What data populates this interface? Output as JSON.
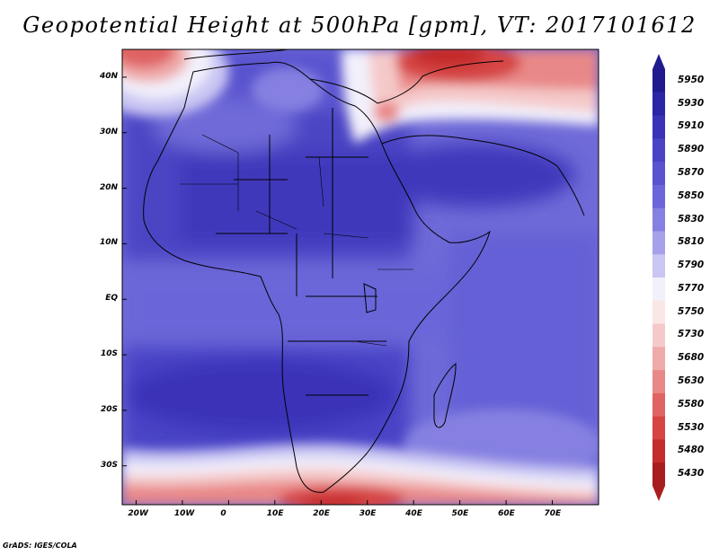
{
  "title": "Geopotential Height at 500hPa [gpm], VT: 2017101612",
  "credit": "GrADS: IGES/COLA",
  "map": {
    "region": "Africa",
    "lon_range": [
      -23,
      80
    ],
    "lat_range": [
      -37,
      45
    ],
    "lat_ticks": [
      "40N",
      "30N",
      "20N",
      "10N",
      "EQ",
      "10S",
      "20S",
      "30S"
    ],
    "lon_ticks": [
      "20W",
      "10W",
      "0",
      "10E",
      "20E",
      "30E",
      "40E",
      "50E",
      "60E",
      "70E"
    ]
  },
  "colorbar": {
    "levels": [
      "5950",
      "5930",
      "5910",
      "5890",
      "5870",
      "5850",
      "5830",
      "5810",
      "5790",
      "5770",
      "5750",
      "5730",
      "5680",
      "5630",
      "5580",
      "5530",
      "5480",
      "5430"
    ],
    "colors": [
      "#1f1b8f",
      "#2b26a6",
      "#3a33b8",
      "#4a43c6",
      "#5a53cf",
      "#6b66d9",
      "#8580e1",
      "#a6a1ea",
      "#c9c6f3",
      "#f2f0fb",
      "#fbe6e6",
      "#f5c9c9",
      "#efaaaa",
      "#e98888",
      "#e06464",
      "#d64444",
      "#c52c2c",
      "#a81e1e"
    ]
  },
  "chart_data": {
    "type": "heatmap",
    "title": "Geopotential Height at 500hPa [gpm], VT: 2017101612",
    "variable": "Geopotential Height",
    "level": "500hPa",
    "units": "gpm",
    "valid_time": "2017101612",
    "x_range": [
      -23,
      80
    ],
    "y_range": [
      -37,
      45
    ],
    "contour_levels": [
      5430,
      5480,
      5530,
      5580,
      5630,
      5680,
      5730,
      5750,
      5770,
      5790,
      5810,
      5830,
      5850,
      5870,
      5890,
      5910,
      5930,
      5950
    ]
  }
}
